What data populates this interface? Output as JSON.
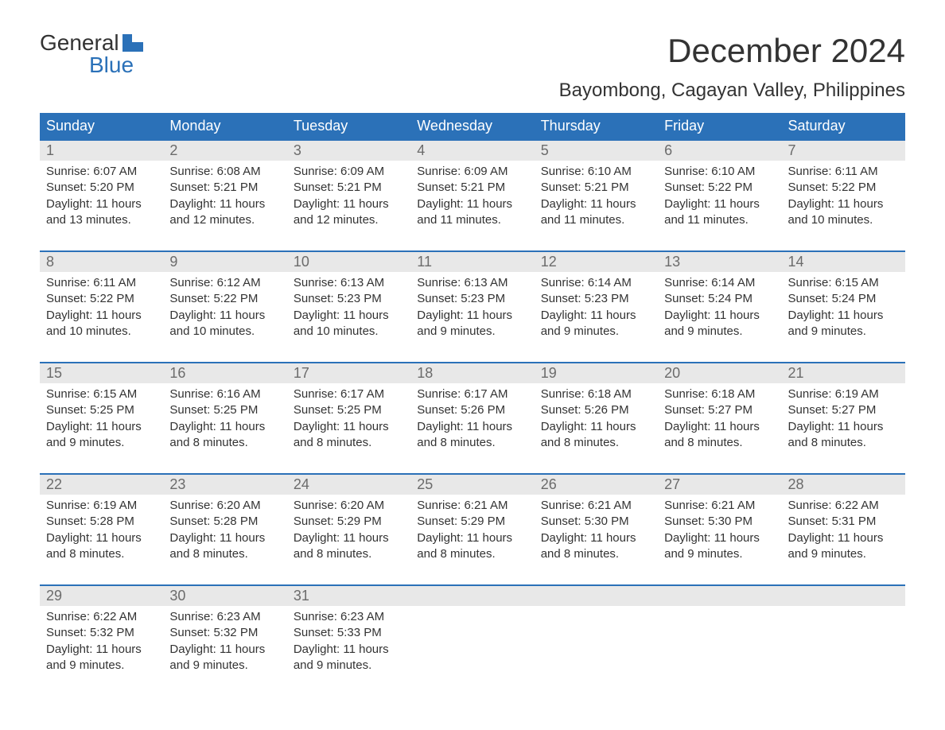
{
  "logo": {
    "top": "General",
    "bottom": "Blue"
  },
  "title": "December 2024",
  "subtitle": "Bayombong, Cagayan Valley, Philippines",
  "colors": {
    "header_bg": "#2b71b8",
    "header_text": "#ffffff",
    "daynum_bg": "#e8e8e8",
    "daynum_text": "#6b6b6b",
    "body_text": "#333333",
    "week_border": "#2b71b8",
    "logo_blue": "#2b71b8"
  },
  "weekdays": [
    "Sunday",
    "Monday",
    "Tuesday",
    "Wednesday",
    "Thursday",
    "Friday",
    "Saturday"
  ],
  "weeks": [
    [
      {
        "num": "1",
        "sunrise": "Sunrise: 6:07 AM",
        "sunset": "Sunset: 5:20 PM",
        "day1": "Daylight: 11 hours",
        "day2": "and 13 minutes."
      },
      {
        "num": "2",
        "sunrise": "Sunrise: 6:08 AM",
        "sunset": "Sunset: 5:21 PM",
        "day1": "Daylight: 11 hours",
        "day2": "and 12 minutes."
      },
      {
        "num": "3",
        "sunrise": "Sunrise: 6:09 AM",
        "sunset": "Sunset: 5:21 PM",
        "day1": "Daylight: 11 hours",
        "day2": "and 12 minutes."
      },
      {
        "num": "4",
        "sunrise": "Sunrise: 6:09 AM",
        "sunset": "Sunset: 5:21 PM",
        "day1": "Daylight: 11 hours",
        "day2": "and 11 minutes."
      },
      {
        "num": "5",
        "sunrise": "Sunrise: 6:10 AM",
        "sunset": "Sunset: 5:21 PM",
        "day1": "Daylight: 11 hours",
        "day2": "and 11 minutes."
      },
      {
        "num": "6",
        "sunrise": "Sunrise: 6:10 AM",
        "sunset": "Sunset: 5:22 PM",
        "day1": "Daylight: 11 hours",
        "day2": "and 11 minutes."
      },
      {
        "num": "7",
        "sunrise": "Sunrise: 6:11 AM",
        "sunset": "Sunset: 5:22 PM",
        "day1": "Daylight: 11 hours",
        "day2": "and 10 minutes."
      }
    ],
    [
      {
        "num": "8",
        "sunrise": "Sunrise: 6:11 AM",
        "sunset": "Sunset: 5:22 PM",
        "day1": "Daylight: 11 hours",
        "day2": "and 10 minutes."
      },
      {
        "num": "9",
        "sunrise": "Sunrise: 6:12 AM",
        "sunset": "Sunset: 5:22 PM",
        "day1": "Daylight: 11 hours",
        "day2": "and 10 minutes."
      },
      {
        "num": "10",
        "sunrise": "Sunrise: 6:13 AM",
        "sunset": "Sunset: 5:23 PM",
        "day1": "Daylight: 11 hours",
        "day2": "and 10 minutes."
      },
      {
        "num": "11",
        "sunrise": "Sunrise: 6:13 AM",
        "sunset": "Sunset: 5:23 PM",
        "day1": "Daylight: 11 hours",
        "day2": "and 9 minutes."
      },
      {
        "num": "12",
        "sunrise": "Sunrise: 6:14 AM",
        "sunset": "Sunset: 5:23 PM",
        "day1": "Daylight: 11 hours",
        "day2": "and 9 minutes."
      },
      {
        "num": "13",
        "sunrise": "Sunrise: 6:14 AM",
        "sunset": "Sunset: 5:24 PM",
        "day1": "Daylight: 11 hours",
        "day2": "and 9 minutes."
      },
      {
        "num": "14",
        "sunrise": "Sunrise: 6:15 AM",
        "sunset": "Sunset: 5:24 PM",
        "day1": "Daylight: 11 hours",
        "day2": "and 9 minutes."
      }
    ],
    [
      {
        "num": "15",
        "sunrise": "Sunrise: 6:15 AM",
        "sunset": "Sunset: 5:25 PM",
        "day1": "Daylight: 11 hours",
        "day2": "and 9 minutes."
      },
      {
        "num": "16",
        "sunrise": "Sunrise: 6:16 AM",
        "sunset": "Sunset: 5:25 PM",
        "day1": "Daylight: 11 hours",
        "day2": "and 8 minutes."
      },
      {
        "num": "17",
        "sunrise": "Sunrise: 6:17 AM",
        "sunset": "Sunset: 5:25 PM",
        "day1": "Daylight: 11 hours",
        "day2": "and 8 minutes."
      },
      {
        "num": "18",
        "sunrise": "Sunrise: 6:17 AM",
        "sunset": "Sunset: 5:26 PM",
        "day1": "Daylight: 11 hours",
        "day2": "and 8 minutes."
      },
      {
        "num": "19",
        "sunrise": "Sunrise: 6:18 AM",
        "sunset": "Sunset: 5:26 PM",
        "day1": "Daylight: 11 hours",
        "day2": "and 8 minutes."
      },
      {
        "num": "20",
        "sunrise": "Sunrise: 6:18 AM",
        "sunset": "Sunset: 5:27 PM",
        "day1": "Daylight: 11 hours",
        "day2": "and 8 minutes."
      },
      {
        "num": "21",
        "sunrise": "Sunrise: 6:19 AM",
        "sunset": "Sunset: 5:27 PM",
        "day1": "Daylight: 11 hours",
        "day2": "and 8 minutes."
      }
    ],
    [
      {
        "num": "22",
        "sunrise": "Sunrise: 6:19 AM",
        "sunset": "Sunset: 5:28 PM",
        "day1": "Daylight: 11 hours",
        "day2": "and 8 minutes."
      },
      {
        "num": "23",
        "sunrise": "Sunrise: 6:20 AM",
        "sunset": "Sunset: 5:28 PM",
        "day1": "Daylight: 11 hours",
        "day2": "and 8 minutes."
      },
      {
        "num": "24",
        "sunrise": "Sunrise: 6:20 AM",
        "sunset": "Sunset: 5:29 PM",
        "day1": "Daylight: 11 hours",
        "day2": "and 8 minutes."
      },
      {
        "num": "25",
        "sunrise": "Sunrise: 6:21 AM",
        "sunset": "Sunset: 5:29 PM",
        "day1": "Daylight: 11 hours",
        "day2": "and 8 minutes."
      },
      {
        "num": "26",
        "sunrise": "Sunrise: 6:21 AM",
        "sunset": "Sunset: 5:30 PM",
        "day1": "Daylight: 11 hours",
        "day2": "and 8 minutes."
      },
      {
        "num": "27",
        "sunrise": "Sunrise: 6:21 AM",
        "sunset": "Sunset: 5:30 PM",
        "day1": "Daylight: 11 hours",
        "day2": "and 9 minutes."
      },
      {
        "num": "28",
        "sunrise": "Sunrise: 6:22 AM",
        "sunset": "Sunset: 5:31 PM",
        "day1": "Daylight: 11 hours",
        "day2": "and 9 minutes."
      }
    ],
    [
      {
        "num": "29",
        "sunrise": "Sunrise: 6:22 AM",
        "sunset": "Sunset: 5:32 PM",
        "day1": "Daylight: 11 hours",
        "day2": "and 9 minutes."
      },
      {
        "num": "30",
        "sunrise": "Sunrise: 6:23 AM",
        "sunset": "Sunset: 5:32 PM",
        "day1": "Daylight: 11 hours",
        "day2": "and 9 minutes."
      },
      {
        "num": "31",
        "sunrise": "Sunrise: 6:23 AM",
        "sunset": "Sunset: 5:33 PM",
        "day1": "Daylight: 11 hours",
        "day2": "and 9 minutes."
      },
      {
        "empty": true
      },
      {
        "empty": true
      },
      {
        "empty": true
      },
      {
        "empty": true
      }
    ]
  ]
}
